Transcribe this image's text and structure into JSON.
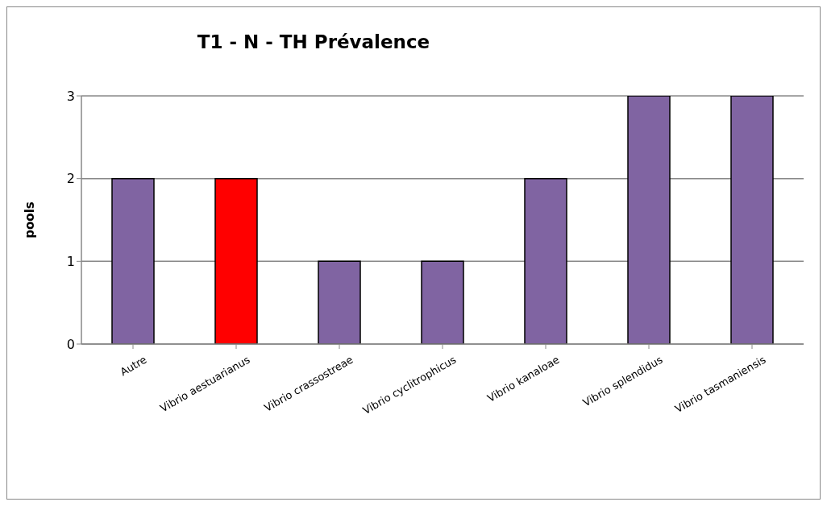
{
  "chart_data": {
    "type": "bar",
    "title": "T1 - N - TH Prévalence",
    "ylabel": "pools",
    "categories": [
      "Autre",
      "Vibrio aestuarianus",
      "Vibrio crassostreae",
      "Vibrio cyclitrophicus",
      "Vibrio kanaloae",
      "Vibrio splendidus",
      "Vibrio tasmaniensis"
    ],
    "values": [
      2,
      2,
      1,
      1,
      2,
      3,
      3
    ],
    "colors": [
      "#8064a2",
      "#ff0000",
      "#8064a2",
      "#8064a2",
      "#8064a2",
      "#8064a2",
      "#8064a2"
    ],
    "ylim": [
      0,
      3
    ],
    "yticks": [
      0,
      1,
      2,
      3
    ],
    "grid": "y",
    "legend": false
  }
}
